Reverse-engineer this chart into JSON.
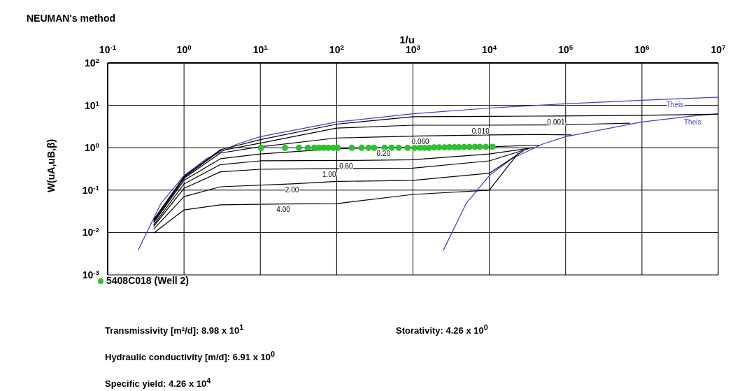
{
  "chart_data": {
    "type": "line",
    "title": "NEUMAN's method",
    "xlabel": "1/u",
    "ylabel": "W(uA,uB,β)",
    "log": "xy",
    "grid": true,
    "legend": "bottom left",
    "xlim": [
      0.1,
      10000000
    ],
    "ylim": [
      0.001,
      100
    ],
    "xticks": [
      {
        "value": 0.1,
        "label": "10$^{-1}$"
      },
      {
        "value": 1,
        "label": "10$^{0}$"
      },
      {
        "value": 10,
        "label": "10$^{1}$"
      },
      {
        "value": 100,
        "label": "10$^{2}$"
      },
      {
        "value": 1000,
        "label": "10$^{3}$"
      },
      {
        "value": 10000,
        "label": "10$^{4}$"
      },
      {
        "value": 100000,
        "label": "10$^{5}$"
      },
      {
        "value": 1000000,
        "label": "10$^{6}$"
      },
      {
        "value": 10000000,
        "label": "10$^{7}$"
      }
    ],
    "yticks": [
      {
        "value": 0.001,
        "label": "10$^{-3}$"
      },
      {
        "value": 0.01,
        "label": "10$^{-2}$"
      },
      {
        "value": 0.1,
        "label": "10$^{-1}$"
      },
      {
        "value": 1,
        "label": "10$^{0}$"
      },
      {
        "value": 10,
        "label": "10$^{1}$"
      },
      {
        "value": 100,
        "label": "10$^{2}$"
      }
    ],
    "series": [
      {
        "type": "line",
        "name": "Theis",
        "color": "#3c3cd8",
        "marker": "none",
        "x": [
          0.25,
          0.5,
          1,
          2,
          5,
          10,
          100,
          1000,
          10000,
          100000,
          1000000,
          2700000,
          10000000
        ],
        "values": [
          0.0038,
          0.049,
          0.22,
          0.56,
          1.22,
          1.82,
          4.04,
          6.33,
          8.63,
          10.9,
          13.2,
          14.2,
          15.5
        ]
      },
      {
        "type": "line",
        "name": "Theis",
        "color": "#3c3cd8",
        "marker": "none",
        "x": [
          2500,
          5000,
          10000,
          20000,
          50000,
          100000,
          1000000,
          4600000,
          10000000
        ],
        "values": [
          0.0038,
          0.049,
          0.22,
          0.56,
          1.22,
          1.82,
          4.04,
          5.6,
          6.3
        ]
      },
      {
        "type": "line",
        "name": "0.001",
        "color": "#000000",
        "marker": "none",
        "x": [
          0.4,
          1,
          3,
          10,
          100,
          1000,
          10000,
          75000,
          1000000,
          10000000
        ],
        "values": [
          0.02,
          0.21,
          0.9,
          1.55,
          3.6,
          5.4,
          5.5,
          5.6,
          5.8,
          6.2
        ]
      },
      {
        "type": "line",
        "name": "0.010",
        "color": "#000000",
        "marker": "none",
        "x": [
          0.4,
          1,
          3,
          10,
          100,
          1000,
          7700,
          60000,
          200000,
          700000
        ],
        "values": [
          0.019,
          0.2,
          0.85,
          1.28,
          2.9,
          3.4,
          3.4,
          3.45,
          3.6,
          3.8
        ]
      },
      {
        "type": "line",
        "name": "0.060",
        "color": "#000000",
        "marker": "none",
        "x": [
          0.4,
          1,
          3,
          10,
          100,
          1250,
          10000,
          50000,
          120000
        ],
        "values": [
          0.018,
          0.19,
          0.75,
          1.05,
          1.7,
          1.9,
          2.0,
          2.05,
          2.0
        ]
      },
      {
        "type": "line",
        "name": "0.20",
        "color": "#000000",
        "marker": "none",
        "x": [
          0.4,
          1,
          3,
          10,
          100,
          410,
          10000,
          45000
        ],
        "values": [
          0.017,
          0.17,
          0.55,
          0.71,
          0.95,
          1.0,
          1.05,
          1.15
        ]
      },
      {
        "type": "line",
        "name": "0.60",
        "color": "#000000",
        "marker": "none",
        "x": [
          0.4,
          1,
          3,
          10,
          133,
          1000,
          10000,
          38000
        ],
        "values": [
          0.015,
          0.14,
          0.4,
          0.49,
          0.5,
          0.52,
          0.71,
          1.0
        ]
      },
      {
        "type": "line",
        "name": "1.00",
        "color": "#000000",
        "marker": "none",
        "x": [
          0.4,
          1,
          3,
          10,
          80,
          1000,
          10000,
          33000
        ],
        "values": [
          0.014,
          0.11,
          0.27,
          0.31,
          0.32,
          0.33,
          0.49,
          0.95
        ]
      },
      {
        "type": "line",
        "name": "2.00",
        "color": "#000000",
        "marker": "none",
        "x": [
          0.4,
          1,
          3,
          26,
          100,
          1000,
          10000,
          28000
        ],
        "values": [
          0.012,
          0.07,
          0.12,
          0.14,
          0.16,
          0.17,
          0.25,
          0.85
        ]
      },
      {
        "type": "line",
        "name": "4.00",
        "color": "#000000",
        "marker": "none",
        "x": [
          0.4,
          1,
          3,
          20,
          100,
          1000,
          10000,
          24000
        ],
        "values": [
          0.0097,
          0.034,
          0.045,
          0.047,
          0.048,
          0.079,
          0.1,
          0.75
        ]
      },
      {
        "type": "scatter",
        "name": "5408C018 (Well 2)",
        "color": "#2fbf2f",
        "marker": "circle",
        "x": [
          10.2,
          21,
          32,
          42,
          51,
          59,
          68,
          78,
          91,
          103,
          158,
          212,
          262,
          310,
          425,
          525,
          650,
          850,
          1050,
          1230,
          1420,
          1620,
          1900,
          2200,
          2600,
          3000,
          3500,
          4000,
          4700,
          5500,
          6500,
          7500,
          9000,
          11000
        ],
        "values": [
          1.0,
          1.0,
          1.0,
          1.0,
          1.0,
          1.0,
          1.0,
          1.0,
          1.0,
          1.0,
          1.0,
          1.0,
          1.0,
          1.0,
          1.0,
          1.0,
          1.0,
          1.0,
          1.0,
          1.0,
          1.0,
          1.0,
          1.02,
          1.02,
          1.02,
          1.03,
          1.03,
          1.03,
          1.04,
          1.04,
          1.05,
          1.05,
          1.05,
          1.05
        ]
      }
    ],
    "annotations": [
      "Transmissivity [m²/d]:  8.98 x 10$^{1}$",
      "Storativity:  4.26 x 10$^{0}$",
      "Hydraulic conductivity [m/d]:  6.91 x 10$^{0}$",
      "Specific yield:  4.26 x 10$^{4}$"
    ]
  }
}
